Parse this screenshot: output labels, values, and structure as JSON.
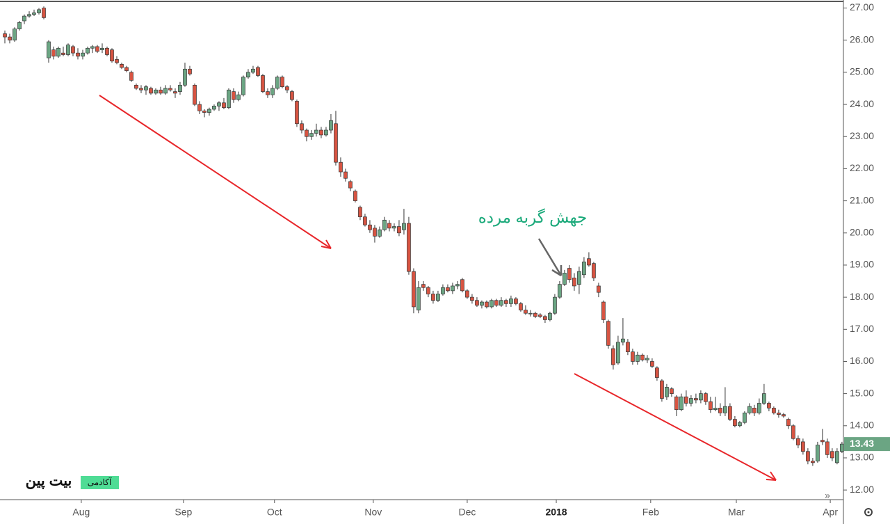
{
  "chart_data": {
    "type": "candlestick",
    "annotation": "جهش گربه مرده",
    "watermark": {
      "name": "بیت پین",
      "badge": "آکادمی"
    },
    "up_color": "#6ba583",
    "down_color": "#d75442",
    "last_price": {
      "value": 13.43,
      "label": "13.43"
    },
    "xlim": [
      -1,
      172.3
    ],
    "xticks": [
      {
        "value": 15.7,
        "label": "Aug"
      },
      {
        "value": 36.7,
        "label": "Sep"
      },
      {
        "value": 55.4,
        "label": "Oct"
      },
      {
        "value": 75.7,
        "label": "Nov"
      },
      {
        "value": 95,
        "label": "Dec"
      },
      {
        "value": 113.3,
        "label": "2018"
      },
      {
        "value": 132.7,
        "label": "Feb"
      },
      {
        "value": 150.3,
        "label": "Mar"
      },
      {
        "value": 169.6,
        "label": "Apr"
      }
    ],
    "ylim": [
      11.7,
      27.25
    ],
    "yticks": [
      {
        "value": 12,
        "label": "12.00"
      },
      {
        "value": 13,
        "label": "13.00"
      },
      {
        "value": 14,
        "label": "14.00"
      },
      {
        "value": 15,
        "label": "15.00"
      },
      {
        "value": 16,
        "label": "16.00"
      },
      {
        "value": 17,
        "label": "17.00"
      },
      {
        "value": 18,
        "label": "18.00"
      },
      {
        "value": 19,
        "label": "19.00"
      },
      {
        "value": 20,
        "label": "20.00"
      },
      {
        "value": 21,
        "label": "21.00"
      },
      {
        "value": 22,
        "label": "22.00"
      },
      {
        "value": 23,
        "label": "23.00"
      },
      {
        "value": 24,
        "label": "24.00"
      },
      {
        "value": 25,
        "label": "25.00"
      },
      {
        "value": 26,
        "label": "26.00"
      },
      {
        "value": 27,
        "label": "27.00"
      }
    ],
    "x": [
      0,
      1,
      2,
      3,
      4,
      5,
      6,
      7,
      8,
      9,
      10,
      11,
      12,
      13,
      14,
      15,
      16,
      17,
      18,
      19,
      20,
      21,
      22,
      23,
      24,
      25,
      26,
      27,
      28,
      29,
      30,
      31,
      32,
      33,
      34,
      35,
      36,
      37,
      38,
      39,
      40,
      41,
      42,
      43,
      44,
      45,
      46,
      47,
      48,
      49,
      50,
      51,
      52,
      53,
      54,
      55,
      56,
      57,
      58,
      59,
      60,
      61,
      62,
      63,
      64,
      65,
      66,
      67,
      68,
      69,
      70,
      71,
      72,
      73,
      74,
      75,
      76,
      77,
      78,
      79,
      80,
      81,
      82,
      83,
      84,
      85,
      86,
      87,
      88,
      89,
      90,
      91,
      92,
      93,
      94,
      95,
      96,
      97,
      98,
      99,
      100,
      101,
      102,
      103,
      104,
      105,
      106,
      107,
      108,
      109,
      110,
      111,
      112,
      113,
      114,
      115,
      116,
      117,
      118,
      119,
      120,
      121,
      122,
      123,
      124,
      125,
      126,
      127,
      128,
      129,
      130,
      131,
      132,
      133,
      134,
      135,
      136,
      137,
      138,
      139,
      140,
      141,
      142,
      143,
      144,
      145,
      146,
      147,
      148,
      149,
      150,
      151,
      152,
      153,
      154,
      155,
      156,
      157,
      158,
      159,
      160,
      161,
      162,
      163,
      164,
      165,
      166,
      167,
      168,
      169,
      170,
      171,
      172
    ],
    "ohlc": [
      [
        26.2,
        26.3,
        25.9,
        26.1
      ],
      [
        26.1,
        26.2,
        25.9,
        26.0
      ],
      [
        26.0,
        26.4,
        25.95,
        26.35
      ],
      [
        26.35,
        26.6,
        26.3,
        26.55
      ],
      [
        26.6,
        26.8,
        26.5,
        26.75
      ],
      [
        26.75,
        26.9,
        26.7,
        26.8
      ],
      [
        26.8,
        26.95,
        26.75,
        26.85
      ],
      [
        26.85,
        27.0,
        26.8,
        26.95
      ],
      [
        27.0,
        27.05,
        26.65,
        26.7
      ],
      [
        25.45,
        26.0,
        25.3,
        25.95
      ],
      [
        25.7,
        25.8,
        25.4,
        25.5
      ],
      [
        25.5,
        25.8,
        25.45,
        25.75
      ],
      [
        25.6,
        25.8,
        25.5,
        25.55
      ],
      [
        25.55,
        25.9,
        25.5,
        25.85
      ],
      [
        25.8,
        25.85,
        25.5,
        25.6
      ],
      [
        25.6,
        25.75,
        25.4,
        25.5
      ],
      [
        25.5,
        25.7,
        25.4,
        25.6
      ],
      [
        25.6,
        25.8,
        25.55,
        25.75
      ],
      [
        25.75,
        25.85,
        25.6,
        25.8
      ],
      [
        25.8,
        25.85,
        25.6,
        25.65
      ],
      [
        25.7,
        25.9,
        25.6,
        25.75
      ],
      [
        25.75,
        25.8,
        25.5,
        25.55
      ],
      [
        25.7,
        25.75,
        25.3,
        25.35
      ],
      [
        25.4,
        25.5,
        25.25,
        25.3
      ],
      [
        25.25,
        25.3,
        25.1,
        25.15
      ],
      [
        25.15,
        25.2,
        25.0,
        25.05
      ],
      [
        25.0,
        25.05,
        24.7,
        24.75
      ],
      [
        24.6,
        24.65,
        24.45,
        24.5
      ],
      [
        24.5,
        24.6,
        24.35,
        24.45
      ],
      [
        24.45,
        24.6,
        24.3,
        24.55
      ],
      [
        24.5,
        24.55,
        24.3,
        24.35
      ],
      [
        24.35,
        24.5,
        24.3,
        24.45
      ],
      [
        24.45,
        24.55,
        24.3,
        24.35
      ],
      [
        24.35,
        24.6,
        24.3,
        24.5
      ],
      [
        24.5,
        24.6,
        24.4,
        24.45
      ],
      [
        24.4,
        24.5,
        24.2,
        24.35
      ],
      [
        24.4,
        24.7,
        24.3,
        24.6
      ],
      [
        24.6,
        25.3,
        24.55,
        25.1
      ],
      [
        25.1,
        25.2,
        24.9,
        24.95
      ],
      [
        24.6,
        24.65,
        23.95,
        24.0
      ],
      [
        24.0,
        24.1,
        23.7,
        23.8
      ],
      [
        23.8,
        23.85,
        23.6,
        23.75
      ],
      [
        23.75,
        23.9,
        23.65,
        23.85
      ],
      [
        23.85,
        24.0,
        23.8,
        23.95
      ],
      [
        23.95,
        24.1,
        23.8,
        24.05
      ],
      [
        24.05,
        24.2,
        23.85,
        23.9
      ],
      [
        23.9,
        24.5,
        23.85,
        24.45
      ],
      [
        24.4,
        24.5,
        24.05,
        24.15
      ],
      [
        24.15,
        24.4,
        24.1,
        24.3
      ],
      [
        24.3,
        24.9,
        24.25,
        24.85
      ],
      [
        24.85,
        25.1,
        24.8,
        25.0
      ],
      [
        25.0,
        25.2,
        24.95,
        25.1
      ],
      [
        25.15,
        25.2,
        24.85,
        24.9
      ],
      [
        24.9,
        24.95,
        24.35,
        24.4
      ],
      [
        24.4,
        24.5,
        24.2,
        24.3
      ],
      [
        24.3,
        24.6,
        24.2,
        24.5
      ],
      [
        24.5,
        24.9,
        24.45,
        24.85
      ],
      [
        24.85,
        24.9,
        24.5,
        24.55
      ],
      [
        24.55,
        24.6,
        24.35,
        24.45
      ],
      [
        24.4,
        24.45,
        24.1,
        24.15
      ],
      [
        24.1,
        24.15,
        23.3,
        23.4
      ],
      [
        23.4,
        23.5,
        23.1,
        23.2
      ],
      [
        23.2,
        23.25,
        22.85,
        23.0
      ],
      [
        23.0,
        23.2,
        22.9,
        23.1
      ],
      [
        23.1,
        23.4,
        23.0,
        23.2
      ],
      [
        23.2,
        23.3,
        22.95,
        23.05
      ],
      [
        23.05,
        23.3,
        23.0,
        23.2
      ],
      [
        23.2,
        23.7,
        23.1,
        23.5
      ],
      [
        23.4,
        23.8,
        22.1,
        22.2
      ],
      [
        22.2,
        22.35,
        21.75,
        21.9
      ],
      [
        21.9,
        22.0,
        21.6,
        21.7
      ],
      [
        21.6,
        21.65,
        21.3,
        21.4
      ],
      [
        21.3,
        21.35,
        20.95,
        21.0
      ],
      [
        20.8,
        20.85,
        20.4,
        20.5
      ],
      [
        20.5,
        20.6,
        20.2,
        20.25
      ],
      [
        20.25,
        20.4,
        20.0,
        20.1
      ],
      [
        20.15,
        20.25,
        19.7,
        19.9
      ],
      [
        19.9,
        20.2,
        19.85,
        20.1
      ],
      [
        20.1,
        20.5,
        20.05,
        20.4
      ],
      [
        20.3,
        20.4,
        20.05,
        20.15
      ],
      [
        20.15,
        20.3,
        20.05,
        20.2
      ],
      [
        20.2,
        20.4,
        19.9,
        20.0
      ],
      [
        20.1,
        20.75,
        19.95,
        20.3
      ],
      [
        20.3,
        20.5,
        18.7,
        18.8
      ],
      [
        18.8,
        18.9,
        17.5,
        17.7
      ],
      [
        17.6,
        18.5,
        17.5,
        18.3
      ],
      [
        18.4,
        18.5,
        18.2,
        18.3
      ],
      [
        18.3,
        18.35,
        18.0,
        18.1
      ],
      [
        18.1,
        18.2,
        17.8,
        17.9
      ],
      [
        17.9,
        18.2,
        17.85,
        18.1
      ],
      [
        18.1,
        18.4,
        18.05,
        18.3
      ],
      [
        18.3,
        18.4,
        18.15,
        18.2
      ],
      [
        18.2,
        18.45,
        18.1,
        18.35
      ],
      [
        18.35,
        18.5,
        18.25,
        18.4
      ],
      [
        18.55,
        18.6,
        18.15,
        18.2
      ],
      [
        18.2,
        18.25,
        17.95,
        18.0
      ],
      [
        18.0,
        18.1,
        17.8,
        17.9
      ],
      [
        17.9,
        18.0,
        17.7,
        17.75
      ],
      [
        17.75,
        17.9,
        17.65,
        17.85
      ],
      [
        17.85,
        17.9,
        17.65,
        17.7
      ],
      [
        17.7,
        17.95,
        17.65,
        17.9
      ],
      [
        17.9,
        17.95,
        17.7,
        17.75
      ],
      [
        17.75,
        18.0,
        17.7,
        17.9
      ],
      [
        17.9,
        17.95,
        17.7,
        17.8
      ],
      [
        17.8,
        18.05,
        17.7,
        17.95
      ],
      [
        17.95,
        18.0,
        17.75,
        17.8
      ],
      [
        17.8,
        17.85,
        17.55,
        17.6
      ],
      [
        17.6,
        17.75,
        17.45,
        17.5
      ],
      [
        17.5,
        17.6,
        17.4,
        17.5
      ],
      [
        17.5,
        17.55,
        17.35,
        17.4
      ],
      [
        17.45,
        17.5,
        17.35,
        17.4
      ],
      [
        17.4,
        17.45,
        17.2,
        17.3
      ],
      [
        17.3,
        17.55,
        17.25,
        17.5
      ],
      [
        17.5,
        18.1,
        17.45,
        18.0
      ],
      [
        18.0,
        18.5,
        17.95,
        18.4
      ],
      [
        18.4,
        18.85,
        18.35,
        18.75
      ],
      [
        18.9,
        19.0,
        18.45,
        18.55
      ],
      [
        18.6,
        18.75,
        18.2,
        18.35
      ],
      [
        18.4,
        18.95,
        18.1,
        18.8
      ],
      [
        18.7,
        19.25,
        18.6,
        19.1
      ],
      [
        19.2,
        19.4,
        18.95,
        19.0
      ],
      [
        19.05,
        19.1,
        18.5,
        18.6
      ],
      [
        18.35,
        18.45,
        18.0,
        18.15
      ],
      [
        17.85,
        17.9,
        17.2,
        17.3
      ],
      [
        17.25,
        17.3,
        16.4,
        16.5
      ],
      [
        16.4,
        16.5,
        15.75,
        15.9
      ],
      [
        15.95,
        16.8,
        15.9,
        16.6
      ],
      [
        16.6,
        17.35,
        16.5,
        16.7
      ],
      [
        16.6,
        16.7,
        16.2,
        16.3
      ],
      [
        16.3,
        16.4,
        15.9,
        16.0
      ],
      [
        16.0,
        16.3,
        15.9,
        16.2
      ],
      [
        16.2,
        16.25,
        16.0,
        16.05
      ],
      [
        16.05,
        16.2,
        15.95,
        16.1
      ],
      [
        16.0,
        16.1,
        15.8,
        15.85
      ],
      [
        15.8,
        15.85,
        15.4,
        15.5
      ],
      [
        15.4,
        15.45,
        14.75,
        14.85
      ],
      [
        14.9,
        15.3,
        14.8,
        15.2
      ],
      [
        15.15,
        15.2,
        14.9,
        15.0
      ],
      [
        14.9,
        14.95,
        14.3,
        14.5
      ],
      [
        14.5,
        15.0,
        14.45,
        14.9
      ],
      [
        14.9,
        15.1,
        14.6,
        14.7
      ],
      [
        14.7,
        14.95,
        14.6,
        14.85
      ],
      [
        14.85,
        15.0,
        14.7,
        14.8
      ],
      [
        14.8,
        15.1,
        14.7,
        15.0
      ],
      [
        15.0,
        15.05,
        14.65,
        14.75
      ],
      [
        14.75,
        14.9,
        14.4,
        14.5
      ],
      [
        14.5,
        14.9,
        14.45,
        14.55
      ],
      [
        14.55,
        14.7,
        14.3,
        14.4
      ],
      [
        14.4,
        15.2,
        14.3,
        14.6
      ],
      [
        14.6,
        14.7,
        14.15,
        14.2
      ],
      [
        14.2,
        14.3,
        13.95,
        14.0
      ],
      [
        14.0,
        14.15,
        13.95,
        14.1
      ],
      [
        14.1,
        14.45,
        14.05,
        14.4
      ],
      [
        14.4,
        14.7,
        14.35,
        14.6
      ],
      [
        14.55,
        14.65,
        14.3,
        14.4
      ],
      [
        14.4,
        14.85,
        14.35,
        14.7
      ],
      [
        14.7,
        15.3,
        14.65,
        15.0
      ],
      [
        14.7,
        14.75,
        14.45,
        14.55
      ],
      [
        14.55,
        14.6,
        14.35,
        14.4
      ],
      [
        14.4,
        14.5,
        14.25,
        14.35
      ],
      [
        14.35,
        14.4,
        14.25,
        14.3
      ],
      [
        14.2,
        14.25,
        13.9,
        14.0
      ],
      [
        14.0,
        14.05,
        13.55,
        13.6
      ],
      [
        13.6,
        13.7,
        13.3,
        13.4
      ],
      [
        13.5,
        13.6,
        13.1,
        13.2
      ],
      [
        13.2,
        13.3,
        12.8,
        12.9
      ],
      [
        12.9,
        13.0,
        12.75,
        12.85
      ],
      [
        12.9,
        13.5,
        12.85,
        13.4
      ],
      [
        13.55,
        13.9,
        13.4,
        13.5
      ],
      [
        13.5,
        13.6,
        13.0,
        13.1
      ],
      [
        13.2,
        13.3,
        12.9,
        13.0
      ],
      [
        12.85,
        13.3,
        12.8,
        13.2
      ],
      [
        13.2,
        13.5,
        13.15,
        13.43
      ]
    ]
  }
}
